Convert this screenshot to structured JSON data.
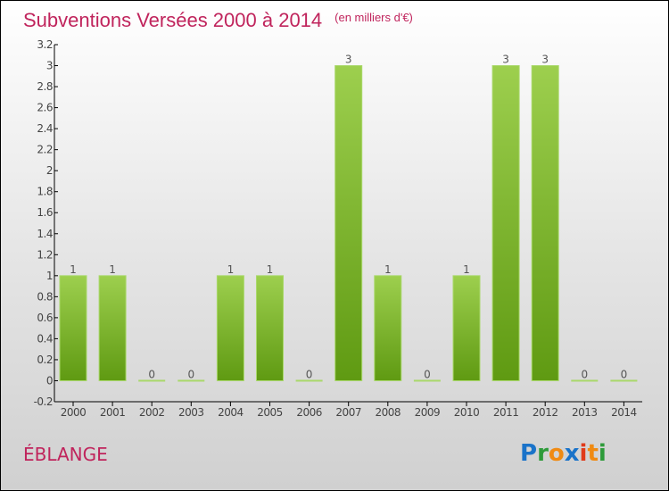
{
  "chart_data": {
    "type": "bar",
    "title": "Subventions Versées 2000 à 2014",
    "subtitle": "(en milliers d'€)",
    "categories": [
      "2000",
      "2001",
      "2002",
      "2003",
      "2004",
      "2005",
      "2006",
      "2007",
      "2008",
      "2009",
      "2010",
      "2011",
      "2012",
      "2013",
      "2014"
    ],
    "values": [
      1,
      1,
      0,
      0,
      1,
      1,
      0,
      3,
      1,
      0,
      1,
      3,
      3,
      0,
      0
    ],
    "data_labels": [
      "1",
      "1",
      "0",
      "0",
      "1",
      "1",
      "0",
      "3",
      "1",
      "0",
      "1",
      "3",
      "3",
      "0",
      "0"
    ],
    "ylim": [
      -0.2,
      3.2
    ],
    "yticks": [
      "-0.2",
      "0",
      "0.2",
      "0.4",
      "0.6",
      "0.8",
      "1",
      "1.2",
      "1.4",
      "1.6",
      "1.8",
      "2",
      "2.2",
      "2.4",
      "2.6",
      "2.8",
      "3",
      "3.2"
    ],
    "xlabel": "",
    "ylabel": "",
    "grid": false,
    "colors": {
      "bar_top": "#9dcf4e",
      "bar_bottom": "#5f9a12",
      "title": "#c0245c"
    }
  },
  "commune": "ÉBLANGE",
  "logo": "Proxiti"
}
